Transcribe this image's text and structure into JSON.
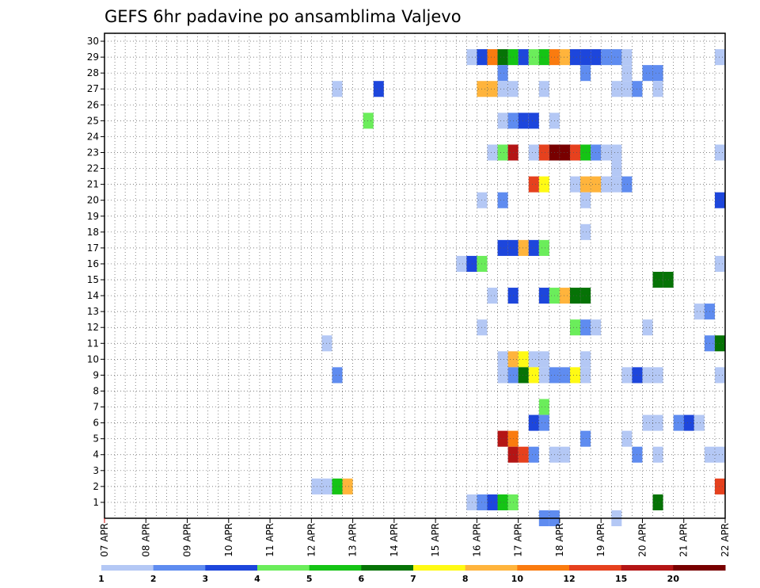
{
  "chart_data": {
    "type": "heatmap",
    "title": "GEFS 6hr padavine po ansamblima Valjevo",
    "x_tick_labels": [
      "07 APR",
      "08 APR",
      "09 APR",
      "10 APR",
      "11 APR",
      "12 APR",
      "13 APR",
      "14 APR",
      "15 APR",
      "16 APR",
      "17 APR",
      "18 APR",
      "19 APR",
      "20 APR",
      "21 APR",
      "22 APR"
    ],
    "x_step_hours": 6,
    "x_steps": 60,
    "y_range": [
      0,
      30
    ],
    "y_tick_labels": [
      "1",
      "2",
      "3",
      "4",
      "5",
      "6",
      "7",
      "8",
      "9",
      "10",
      "11",
      "12",
      "13",
      "14",
      "15",
      "16",
      "17",
      "18",
      "19",
      "20",
      "21",
      "22",
      "23",
      "24",
      "25",
      "26",
      "27",
      "28",
      "29",
      "30"
    ],
    "grid": true,
    "color_scale": {
      "colors": [
        "#b4c8f5",
        "#5f8cf0",
        "#1d46dc",
        "#6bed5b",
        "#15c415",
        "#067306",
        "#fffa14",
        "#ffb43c",
        "#fa7b0f",
        "#e6411e",
        "#b41515",
        "#780000"
      ],
      "labels": [
        "1",
        "2",
        "3",
        "4",
        "5",
        "6",
        "7",
        "8",
        "10",
        "12",
        "15",
        "20"
      ]
    },
    "cells": [
      {
        "m": 29,
        "s": [
          [
            35,
            0
          ],
          [
            36,
            2
          ],
          [
            37,
            8
          ],
          [
            38,
            5
          ],
          [
            39,
            4
          ],
          [
            40,
            2
          ],
          [
            41,
            3
          ],
          [
            42,
            4
          ],
          [
            43,
            8
          ],
          [
            44,
            7
          ],
          [
            45,
            2
          ],
          [
            46,
            2
          ],
          [
            47,
            2
          ],
          [
            48,
            1
          ],
          [
            49,
            1
          ],
          [
            50,
            0
          ],
          [
            59,
            0
          ]
        ]
      },
      {
        "m": 28,
        "s": [
          [
            38,
            1
          ],
          [
            46,
            1
          ],
          [
            50,
            0
          ],
          [
            52,
            1
          ],
          [
            53,
            1
          ]
        ]
      },
      {
        "m": 27,
        "s": [
          [
            22,
            0
          ],
          [
            26,
            2
          ],
          [
            36,
            7
          ],
          [
            37,
            7
          ],
          [
            38,
            0
          ],
          [
            39,
            0
          ],
          [
            42,
            0
          ],
          [
            49,
            0
          ],
          [
            50,
            0
          ],
          [
            51,
            1
          ],
          [
            53,
            0
          ]
        ]
      },
      {
        "m": 25,
        "s": [
          [
            25,
            3
          ],
          [
            38,
            0
          ],
          [
            39,
            1
          ],
          [
            40,
            2
          ],
          [
            41,
            2
          ],
          [
            43,
            0
          ]
        ]
      },
      {
        "m": 23,
        "s": [
          [
            37,
            0
          ],
          [
            38,
            3
          ],
          [
            39,
            10
          ],
          [
            41,
            0
          ],
          [
            42,
            9
          ],
          [
            43,
            11
          ],
          [
            44,
            11
          ],
          [
            45,
            9
          ],
          [
            46,
            4
          ],
          [
            47,
            1
          ],
          [
            48,
            0
          ],
          [
            49,
            0
          ],
          [
            59,
            0
          ]
        ]
      },
      {
        "m": 22,
        "s": [
          [
            49,
            0
          ]
        ]
      },
      {
        "m": 21,
        "s": [
          [
            41,
            9
          ],
          [
            42,
            6
          ],
          [
            45,
            0
          ],
          [
            46,
            7
          ],
          [
            47,
            7
          ],
          [
            48,
            0
          ],
          [
            49,
            0
          ],
          [
            50,
            1
          ]
        ]
      },
      {
        "m": 20,
        "s": [
          [
            36,
            0
          ],
          [
            38,
            1
          ],
          [
            46,
            0
          ],
          [
            59,
            2
          ]
        ]
      },
      {
        "m": 18,
        "s": [
          [
            46,
            0
          ]
        ]
      },
      {
        "m": 17,
        "s": [
          [
            38,
            2
          ],
          [
            39,
            2
          ],
          [
            40,
            7
          ],
          [
            41,
            2
          ],
          [
            42,
            3
          ]
        ]
      },
      {
        "m": 16,
        "s": [
          [
            34,
            0
          ],
          [
            35,
            2
          ],
          [
            36,
            3
          ],
          [
            59,
            0
          ]
        ]
      },
      {
        "m": 15,
        "s": [
          [
            53,
            5
          ],
          [
            54,
            5
          ]
        ]
      },
      {
        "m": 14,
        "s": [
          [
            37,
            0
          ],
          [
            39,
            2
          ],
          [
            42,
            2
          ],
          [
            43,
            3
          ],
          [
            44,
            7
          ],
          [
            45,
            5
          ],
          [
            46,
            5
          ]
        ]
      },
      {
        "m": 13,
        "s": [
          [
            57,
            0
          ],
          [
            58,
            1
          ]
        ]
      },
      {
        "m": 12,
        "s": [
          [
            36,
            0
          ],
          [
            45,
            3
          ],
          [
            46,
            1
          ],
          [
            47,
            0
          ],
          [
            52,
            0
          ]
        ]
      },
      {
        "m": 11,
        "s": [
          [
            21,
            0
          ],
          [
            58,
            1
          ],
          [
            59,
            5
          ]
        ]
      },
      {
        "m": 10,
        "s": [
          [
            38,
            0
          ],
          [
            39,
            7
          ],
          [
            40,
            6
          ],
          [
            41,
            0
          ],
          [
            42,
            0
          ],
          [
            46,
            0
          ]
        ]
      },
      {
        "m": 9,
        "s": [
          [
            22,
            1
          ],
          [
            38,
            0
          ],
          [
            39,
            1
          ],
          [
            40,
            5
          ],
          [
            41,
            6
          ],
          [
            42,
            0
          ],
          [
            43,
            1
          ],
          [
            44,
            1
          ],
          [
            45,
            6
          ],
          [
            46,
            0
          ],
          [
            50,
            0
          ],
          [
            51,
            2
          ],
          [
            52,
            0
          ],
          [
            53,
            0
          ],
          [
            59,
            0
          ]
        ]
      },
      {
        "m": 7,
        "s": [
          [
            42,
            3
          ]
        ]
      },
      {
        "m": 6,
        "s": [
          [
            41,
            2
          ],
          [
            42,
            1
          ],
          [
            52,
            0
          ],
          [
            53,
            0
          ],
          [
            55,
            1
          ],
          [
            56,
            2
          ],
          [
            57,
            0
          ]
        ]
      },
      {
        "m": 5,
        "s": [
          [
            38,
            10
          ],
          [
            39,
            8
          ],
          [
            46,
            1
          ],
          [
            50,
            0
          ]
        ]
      },
      {
        "m": 4,
        "s": [
          [
            39,
            10
          ],
          [
            40,
            9
          ],
          [
            41,
            1
          ],
          [
            43,
            0
          ],
          [
            44,
            0
          ],
          [
            51,
            1
          ],
          [
            53,
            0
          ],
          [
            58,
            0
          ],
          [
            59,
            0
          ]
        ]
      },
      {
        "m": 2,
        "s": [
          [
            20,
            0
          ],
          [
            21,
            0
          ],
          [
            22,
            4
          ],
          [
            23,
            7
          ],
          [
            59,
            9
          ]
        ]
      },
      {
        "m": 1,
        "s": [
          [
            35,
            0
          ],
          [
            36,
            1
          ],
          [
            37,
            2
          ],
          [
            38,
            4
          ],
          [
            39,
            3
          ],
          [
            53,
            5
          ]
        ]
      },
      {
        "m": 0,
        "s": [
          [
            42,
            1
          ],
          [
            43,
            1
          ],
          [
            49,
            0
          ]
        ]
      }
    ]
  }
}
